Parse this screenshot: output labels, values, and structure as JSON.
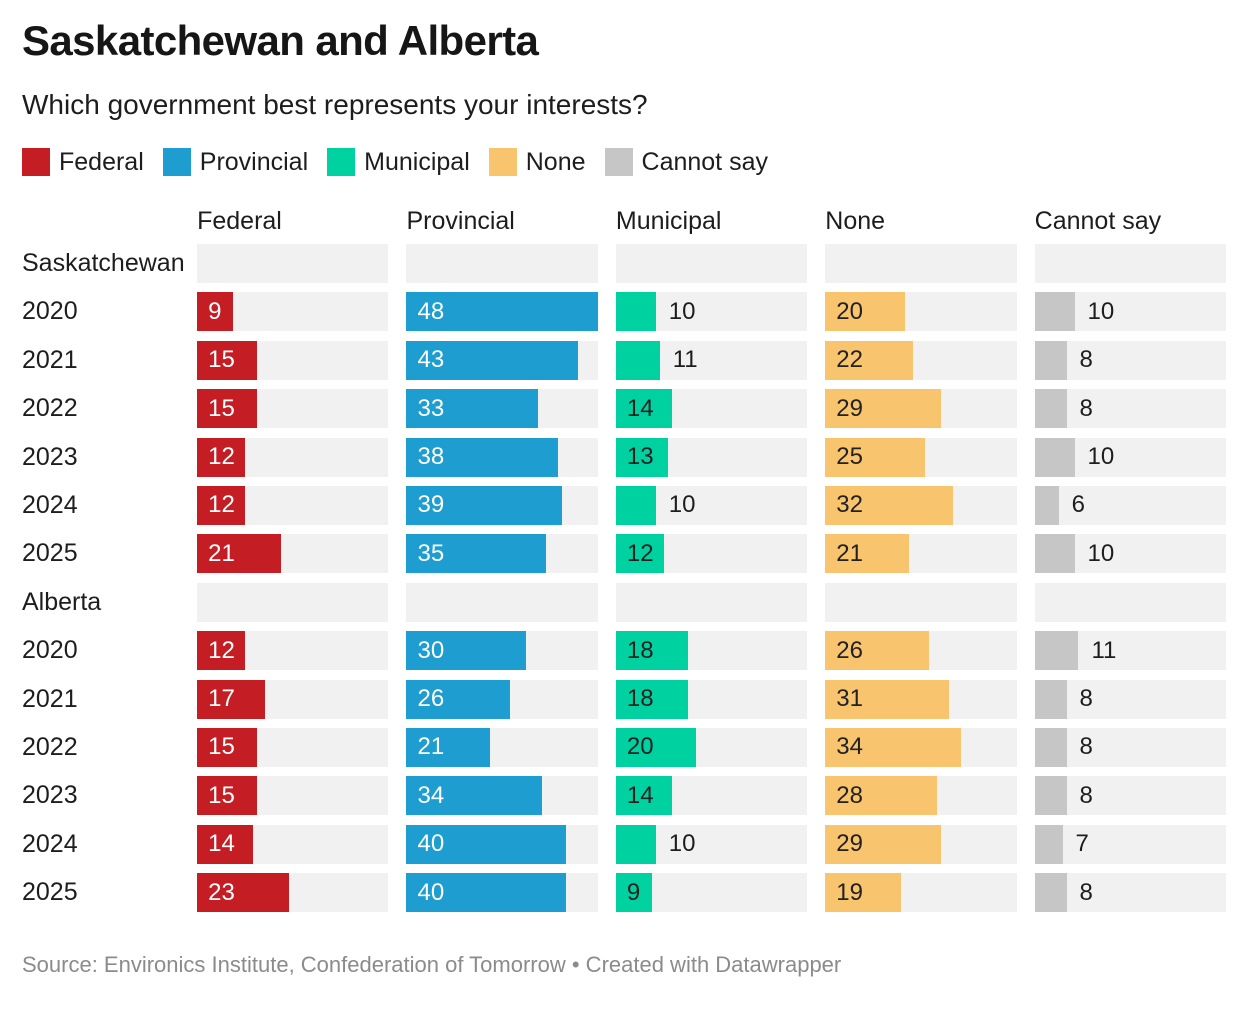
{
  "header": {
    "title": "Saskatchewan and Alberta",
    "subtitle": "Which government best represents your interests?"
  },
  "legend": [
    {
      "label": "Federal",
      "color": "#c41e24",
      "inside_label_color": "#ffffff"
    },
    {
      "label": "Provincial",
      "color": "#1d9dd0",
      "inside_label_color": "#ffffff"
    },
    {
      "label": "Municipal",
      "color": "#00d1a0",
      "inside_label_color": "#222222"
    },
    {
      "label": "None",
      "color": "#f9c46e",
      "inside_label_color": "#222222"
    },
    {
      "label": "Cannot say",
      "color": "#c6c6c6",
      "inside_label_color": "#222222"
    }
  ],
  "chart_data": {
    "type": "bar",
    "orientation": "horizontal",
    "title": "Saskatchewan and Alberta",
    "subtitle": "Which government best represents your interests?",
    "columns": [
      "Federal",
      "Provincial",
      "Municipal",
      "None",
      "Cannot say"
    ],
    "xlim": [
      0,
      48
    ],
    "track_color": "#f1f1f1",
    "grid": false,
    "legend_position": "top",
    "groups": [
      {
        "label": "Saskatchewan",
        "rows": [
          {
            "label": "2020",
            "values": [
              9,
              48,
              10,
              20,
              10
            ]
          },
          {
            "label": "2021",
            "values": [
              15,
              43,
              11,
              22,
              8
            ]
          },
          {
            "label": "2022",
            "values": [
              15,
              33,
              14,
              29,
              8
            ]
          },
          {
            "label": "2023",
            "values": [
              12,
              38,
              13,
              25,
              10
            ]
          },
          {
            "label": "2024",
            "values": [
              12,
              39,
              10,
              32,
              6
            ]
          },
          {
            "label": "2025",
            "values": [
              21,
              35,
              12,
              21,
              10
            ]
          }
        ]
      },
      {
        "label": "Alberta",
        "rows": [
          {
            "label": "2020",
            "values": [
              12,
              30,
              18,
              26,
              11
            ]
          },
          {
            "label": "2021",
            "values": [
              17,
              26,
              18,
              31,
              8
            ]
          },
          {
            "label": "2022",
            "values": [
              15,
              21,
              20,
              34,
              8
            ]
          },
          {
            "label": "2023",
            "values": [
              15,
              34,
              14,
              28,
              8
            ]
          },
          {
            "label": "2024",
            "values": [
              14,
              40,
              10,
              29,
              7
            ]
          },
          {
            "label": "2025",
            "values": [
              23,
              40,
              9,
              19,
              8
            ]
          }
        ]
      }
    ]
  },
  "footer": {
    "source_text": "Source: Environics Institute, Confederation of Tomorrow • Created with Datawrapper"
  }
}
